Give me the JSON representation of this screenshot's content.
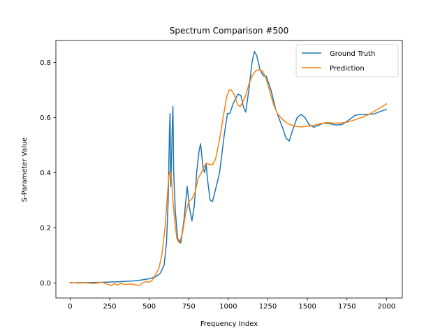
{
  "chart_data": {
    "type": "line",
    "title": "Spectrum Comparison #500",
    "xlabel": "Frequency Index",
    "ylabel": "S-Parameter Value",
    "xlim": [
      -90,
      2100
    ],
    "ylim": [
      -0.055,
      0.88
    ],
    "xticks": [
      0,
      250,
      500,
      750,
      1000,
      1250,
      1500,
      1750,
      2000
    ],
    "xtick_labels": [
      "0",
      "250",
      "500",
      "750",
      "1000",
      "1250",
      "1500",
      "1750",
      "2000"
    ],
    "yticks": [
      0.0,
      0.2,
      0.4,
      0.6,
      0.8
    ],
    "ytick_labels": [
      "0.0",
      "0.2",
      "0.4",
      "0.6",
      "0.8"
    ],
    "grid": false,
    "legend_position": "top-right",
    "series": [
      {
        "name": "Ground Truth",
        "color": "#1f77b4",
        "points": [
          [
            0,
            0.0
          ],
          [
            100,
            0.001
          ],
          [
            200,
            0.002
          ],
          [
            300,
            0.004
          ],
          [
            400,
            0.007
          ],
          [
            450,
            0.01
          ],
          [
            500,
            0.015
          ],
          [
            540,
            0.022
          ],
          [
            570,
            0.035
          ],
          [
            595,
            0.065
          ],
          [
            610,
            0.15
          ],
          [
            620,
            0.3
          ],
          [
            628,
            0.55
          ],
          [
            632,
            0.615
          ],
          [
            636,
            0.35
          ],
          [
            640,
            0.42
          ],
          [
            645,
            0.55
          ],
          [
            650,
            0.64
          ],
          [
            655,
            0.4
          ],
          [
            665,
            0.26
          ],
          [
            680,
            0.16
          ],
          [
            700,
            0.145
          ],
          [
            720,
            0.23
          ],
          [
            740,
            0.35
          ],
          [
            755,
            0.27
          ],
          [
            770,
            0.225
          ],
          [
            785,
            0.28
          ],
          [
            800,
            0.4
          ],
          [
            815,
            0.48
          ],
          [
            825,
            0.505
          ],
          [
            840,
            0.42
          ],
          [
            850,
            0.4
          ],
          [
            860,
            0.43
          ],
          [
            870,
            0.37
          ],
          [
            885,
            0.3
          ],
          [
            900,
            0.295
          ],
          [
            920,
            0.34
          ],
          [
            945,
            0.4
          ],
          [
            975,
            0.54
          ],
          [
            995,
            0.615
          ],
          [
            1010,
            0.615
          ],
          [
            1030,
            0.65
          ],
          [
            1060,
            0.685
          ],
          [
            1080,
            0.68
          ],
          [
            1095,
            0.64
          ],
          [
            1110,
            0.62
          ],
          [
            1130,
            0.7
          ],
          [
            1150,
            0.8
          ],
          [
            1165,
            0.84
          ],
          [
            1180,
            0.825
          ],
          [
            1200,
            0.775
          ],
          [
            1220,
            0.752
          ],
          [
            1240,
            0.75
          ],
          [
            1270,
            0.7
          ],
          [
            1300,
            0.63
          ],
          [
            1325,
            0.59
          ],
          [
            1345,
            0.56
          ],
          [
            1365,
            0.525
          ],
          [
            1385,
            0.515
          ],
          [
            1410,
            0.56
          ],
          [
            1435,
            0.6
          ],
          [
            1460,
            0.612
          ],
          [
            1485,
            0.6
          ],
          [
            1510,
            0.575
          ],
          [
            1540,
            0.565
          ],
          [
            1570,
            0.572
          ],
          [
            1600,
            0.58
          ],
          [
            1640,
            0.578
          ],
          [
            1680,
            0.573
          ],
          [
            1720,
            0.575
          ],
          [
            1760,
            0.59
          ],
          [
            1800,
            0.608
          ],
          [
            1840,
            0.612
          ],
          [
            1880,
            0.612
          ],
          [
            1920,
            0.613
          ],
          [
            1960,
            0.622
          ],
          [
            2000,
            0.63
          ]
        ]
      },
      {
        "name": "Prediction",
        "color": "#ff7f0e",
        "points": [
          [
            0,
            0.002
          ],
          [
            50,
            -0.001
          ],
          [
            100,
            0.0
          ],
          [
            150,
            -0.002
          ],
          [
            200,
            0.002
          ],
          [
            240,
            -0.005
          ],
          [
            260,
            -0.01
          ],
          [
            280,
            -0.003
          ],
          [
            300,
            -0.008
          ],
          [
            320,
            -0.002
          ],
          [
            350,
            -0.006
          ],
          [
            380,
            -0.004
          ],
          [
            420,
            -0.008
          ],
          [
            440,
            -0.009
          ],
          [
            460,
            0.0
          ],
          [
            480,
            0.005
          ],
          [
            500,
            0.002
          ],
          [
            520,
            0.01
          ],
          [
            540,
            0.03
          ],
          [
            560,
            0.05
          ],
          [
            580,
            0.1
          ],
          [
            600,
            0.2
          ],
          [
            615,
            0.32
          ],
          [
            625,
            0.39
          ],
          [
            632,
            0.405
          ],
          [
            640,
            0.39
          ],
          [
            650,
            0.3
          ],
          [
            660,
            0.23
          ],
          [
            675,
            0.16
          ],
          [
            690,
            0.145
          ],
          [
            710,
            0.18
          ],
          [
            730,
            0.25
          ],
          [
            750,
            0.295
          ],
          [
            770,
            0.305
          ],
          [
            790,
            0.33
          ],
          [
            810,
            0.38
          ],
          [
            830,
            0.4
          ],
          [
            845,
            0.42
          ],
          [
            860,
            0.435
          ],
          [
            880,
            0.43
          ],
          [
            900,
            0.428
          ],
          [
            920,
            0.45
          ],
          [
            945,
            0.52
          ],
          [
            970,
            0.61
          ],
          [
            990,
            0.675
          ],
          [
            1005,
            0.7
          ],
          [
            1020,
            0.7
          ],
          [
            1040,
            0.68
          ],
          [
            1060,
            0.645
          ],
          [
            1075,
            0.64
          ],
          [
            1090,
            0.655
          ],
          [
            1110,
            0.68
          ],
          [
            1130,
            0.72
          ],
          [
            1150,
            0.75
          ],
          [
            1170,
            0.768
          ],
          [
            1195,
            0.775
          ],
          [
            1215,
            0.77
          ],
          [
            1235,
            0.748
          ],
          [
            1260,
            0.7
          ],
          [
            1285,
            0.65
          ],
          [
            1310,
            0.615
          ],
          [
            1340,
            0.595
          ],
          [
            1370,
            0.58
          ],
          [
            1400,
            0.573
          ],
          [
            1430,
            0.568
          ],
          [
            1460,
            0.566
          ],
          [
            1500,
            0.568
          ],
          [
            1540,
            0.572
          ],
          [
            1580,
            0.578
          ],
          [
            1620,
            0.582
          ],
          [
            1660,
            0.58
          ],
          [
            1700,
            0.58
          ],
          [
            1750,
            0.583
          ],
          [
            1800,
            0.592
          ],
          [
            1850,
            0.602
          ],
          [
            1900,
            0.615
          ],
          [
            1950,
            0.632
          ],
          [
            2000,
            0.65
          ]
        ]
      }
    ]
  }
}
